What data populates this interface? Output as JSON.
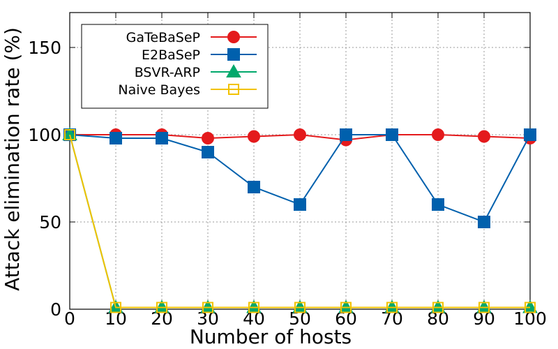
{
  "chart_data": {
    "type": "line",
    "title": "",
    "xlabel": "Number of hosts",
    "ylabel": "Attack elimination rate (%)",
    "xlim": [
      0,
      100
    ],
    "ylim": [
      0,
      170
    ],
    "x_ticks": [
      0,
      10,
      20,
      30,
      40,
      50,
      60,
      70,
      80,
      90,
      100
    ],
    "y_ticks": [
      0,
      50,
      100,
      150
    ],
    "grid": true,
    "legend_position": "top-left",
    "x": [
      0,
      10,
      20,
      30,
      40,
      50,
      60,
      70,
      80,
      90,
      100
    ],
    "series": [
      {
        "name": "GaTeBaSeP",
        "color": "#e41a1c",
        "marker": "circle",
        "values": [
          100,
          100,
          100,
          98,
          99,
          100,
          97,
          100,
          100,
          99,
          98
        ]
      },
      {
        "name": "E2BaSeP",
        "color": "#0060ad",
        "marker": "square",
        "values": [
          100,
          98,
          98,
          90,
          70,
          60,
          100,
          100,
          60,
          50,
          100
        ]
      },
      {
        "name": "BSVR-ARP",
        "color": "#00a86b",
        "marker": "triangle",
        "values": [
          100,
          1,
          1,
          1,
          1,
          1,
          1,
          1,
          1,
          1,
          1
        ]
      },
      {
        "name": "Naive Bayes",
        "color": "#f2c200",
        "marker": "square-open",
        "values": [
          100,
          1,
          1,
          1,
          1,
          1,
          1,
          1,
          1,
          1,
          1
        ]
      }
    ]
  }
}
